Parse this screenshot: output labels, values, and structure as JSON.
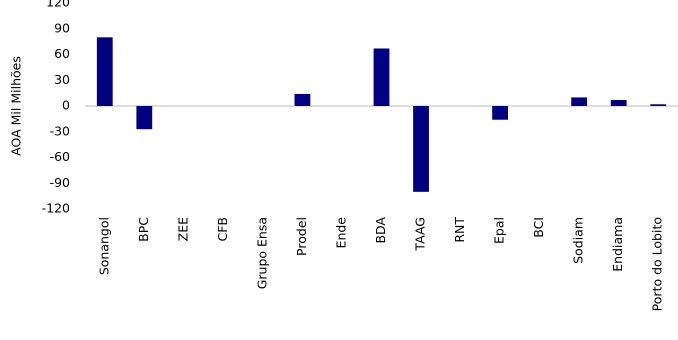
{
  "chart_data": {
    "type": "bar",
    "y_label": "AOA Mil Milhões",
    "categories": [
      "Sonangol",
      "BPC",
      "ZEE",
      "CFB",
      "Grupo Ensa",
      "Prodel",
      "Ende",
      "BDA",
      "TAAG",
      "RNT",
      "Epal",
      "BCI",
      "Sodiam",
      "Endiama",
      "Porto do Lobito"
    ],
    "values": [
      80,
      -27,
      0,
      0,
      0,
      14,
      0,
      67,
      -100,
      0,
      -16,
      0,
      10,
      7,
      2
    ],
    "color": "#000080",
    "ylim": [
      -120,
      120
    ],
    "yticks": [
      -120,
      -90,
      -60,
      -30,
      0,
      30,
      60,
      90,
      120
    ],
    "grid": false
  }
}
